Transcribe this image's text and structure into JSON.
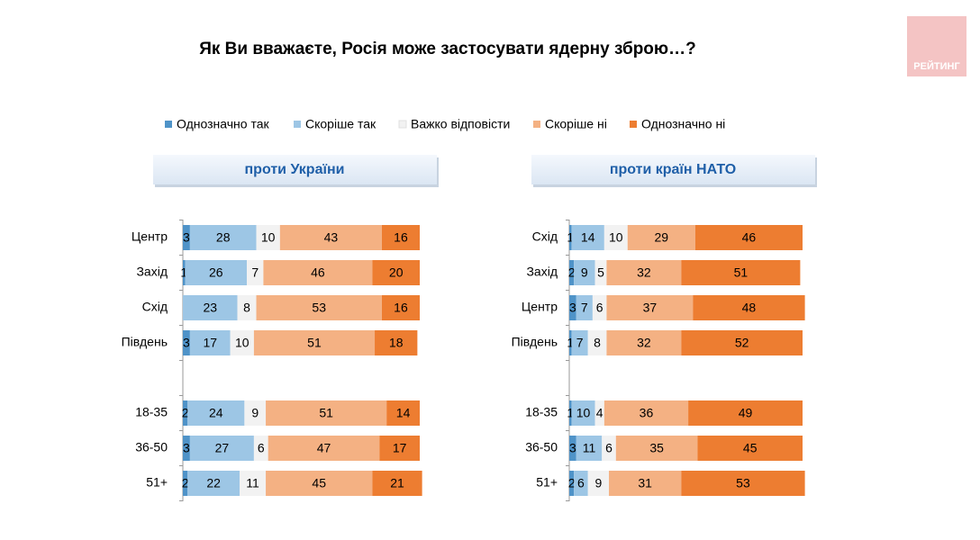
{
  "title": "Як Ви вважаєте, Росія може застосувати ядерну зброю…?",
  "logo": "РЕЙТИНГ",
  "chart_data": [
    {
      "type": "stacked-bar-horizontal",
      "subtitle": "проти України",
      "xlim": [
        0,
        100
      ],
      "categories": [
        "Центр",
        "Захід",
        "Схід",
        "Південь",
        null,
        "18-35",
        "36-50",
        "51+"
      ],
      "series": [
        {
          "name": "Однозначно так",
          "color": "#4f93c8",
          "values": [
            3,
            1,
            null,
            3,
            null,
            2,
            3,
            2
          ]
        },
        {
          "name": "Скоріше так",
          "color": "#9dc6e5",
          "values": [
            28,
            26,
            23,
            17,
            null,
            24,
            27,
            22
          ]
        },
        {
          "name": "Важко відповісти",
          "color": "#f2f2f2",
          "values": [
            10,
            7,
            8,
            10,
            null,
            9,
            6,
            11
          ]
        },
        {
          "name": "Скоріше ні",
          "color": "#f4b183",
          "values": [
            43,
            46,
            53,
            51,
            null,
            51,
            47,
            45
          ]
        },
        {
          "name": "Однозначно ні",
          "color": "#ed7d31",
          "values": [
            16,
            20,
            16,
            18,
            null,
            14,
            17,
            21
          ]
        }
      ]
    },
    {
      "type": "stacked-bar-horizontal",
      "subtitle": "проти країн НАТО",
      "xlim": [
        0,
        100
      ],
      "categories": [
        "Схід",
        "Захід",
        "Центр",
        "Південь",
        null,
        "18-35",
        "36-50",
        "51+"
      ],
      "series": [
        {
          "values": [
            1,
            2,
            3,
            1,
            null,
            1,
            3,
            2
          ]
        },
        {
          "values": [
            14,
            9,
            7,
            7,
            null,
            10,
            11,
            6
          ]
        },
        {
          "values": [
            10,
            5,
            6,
            8,
            null,
            4,
            6,
            9
          ]
        },
        {
          "values": [
            29,
            32,
            37,
            32,
            null,
            36,
            35,
            31
          ]
        },
        {
          "values": [
            46,
            51,
            48,
            52,
            null,
            49,
            45,
            53
          ]
        }
      ]
    }
  ]
}
